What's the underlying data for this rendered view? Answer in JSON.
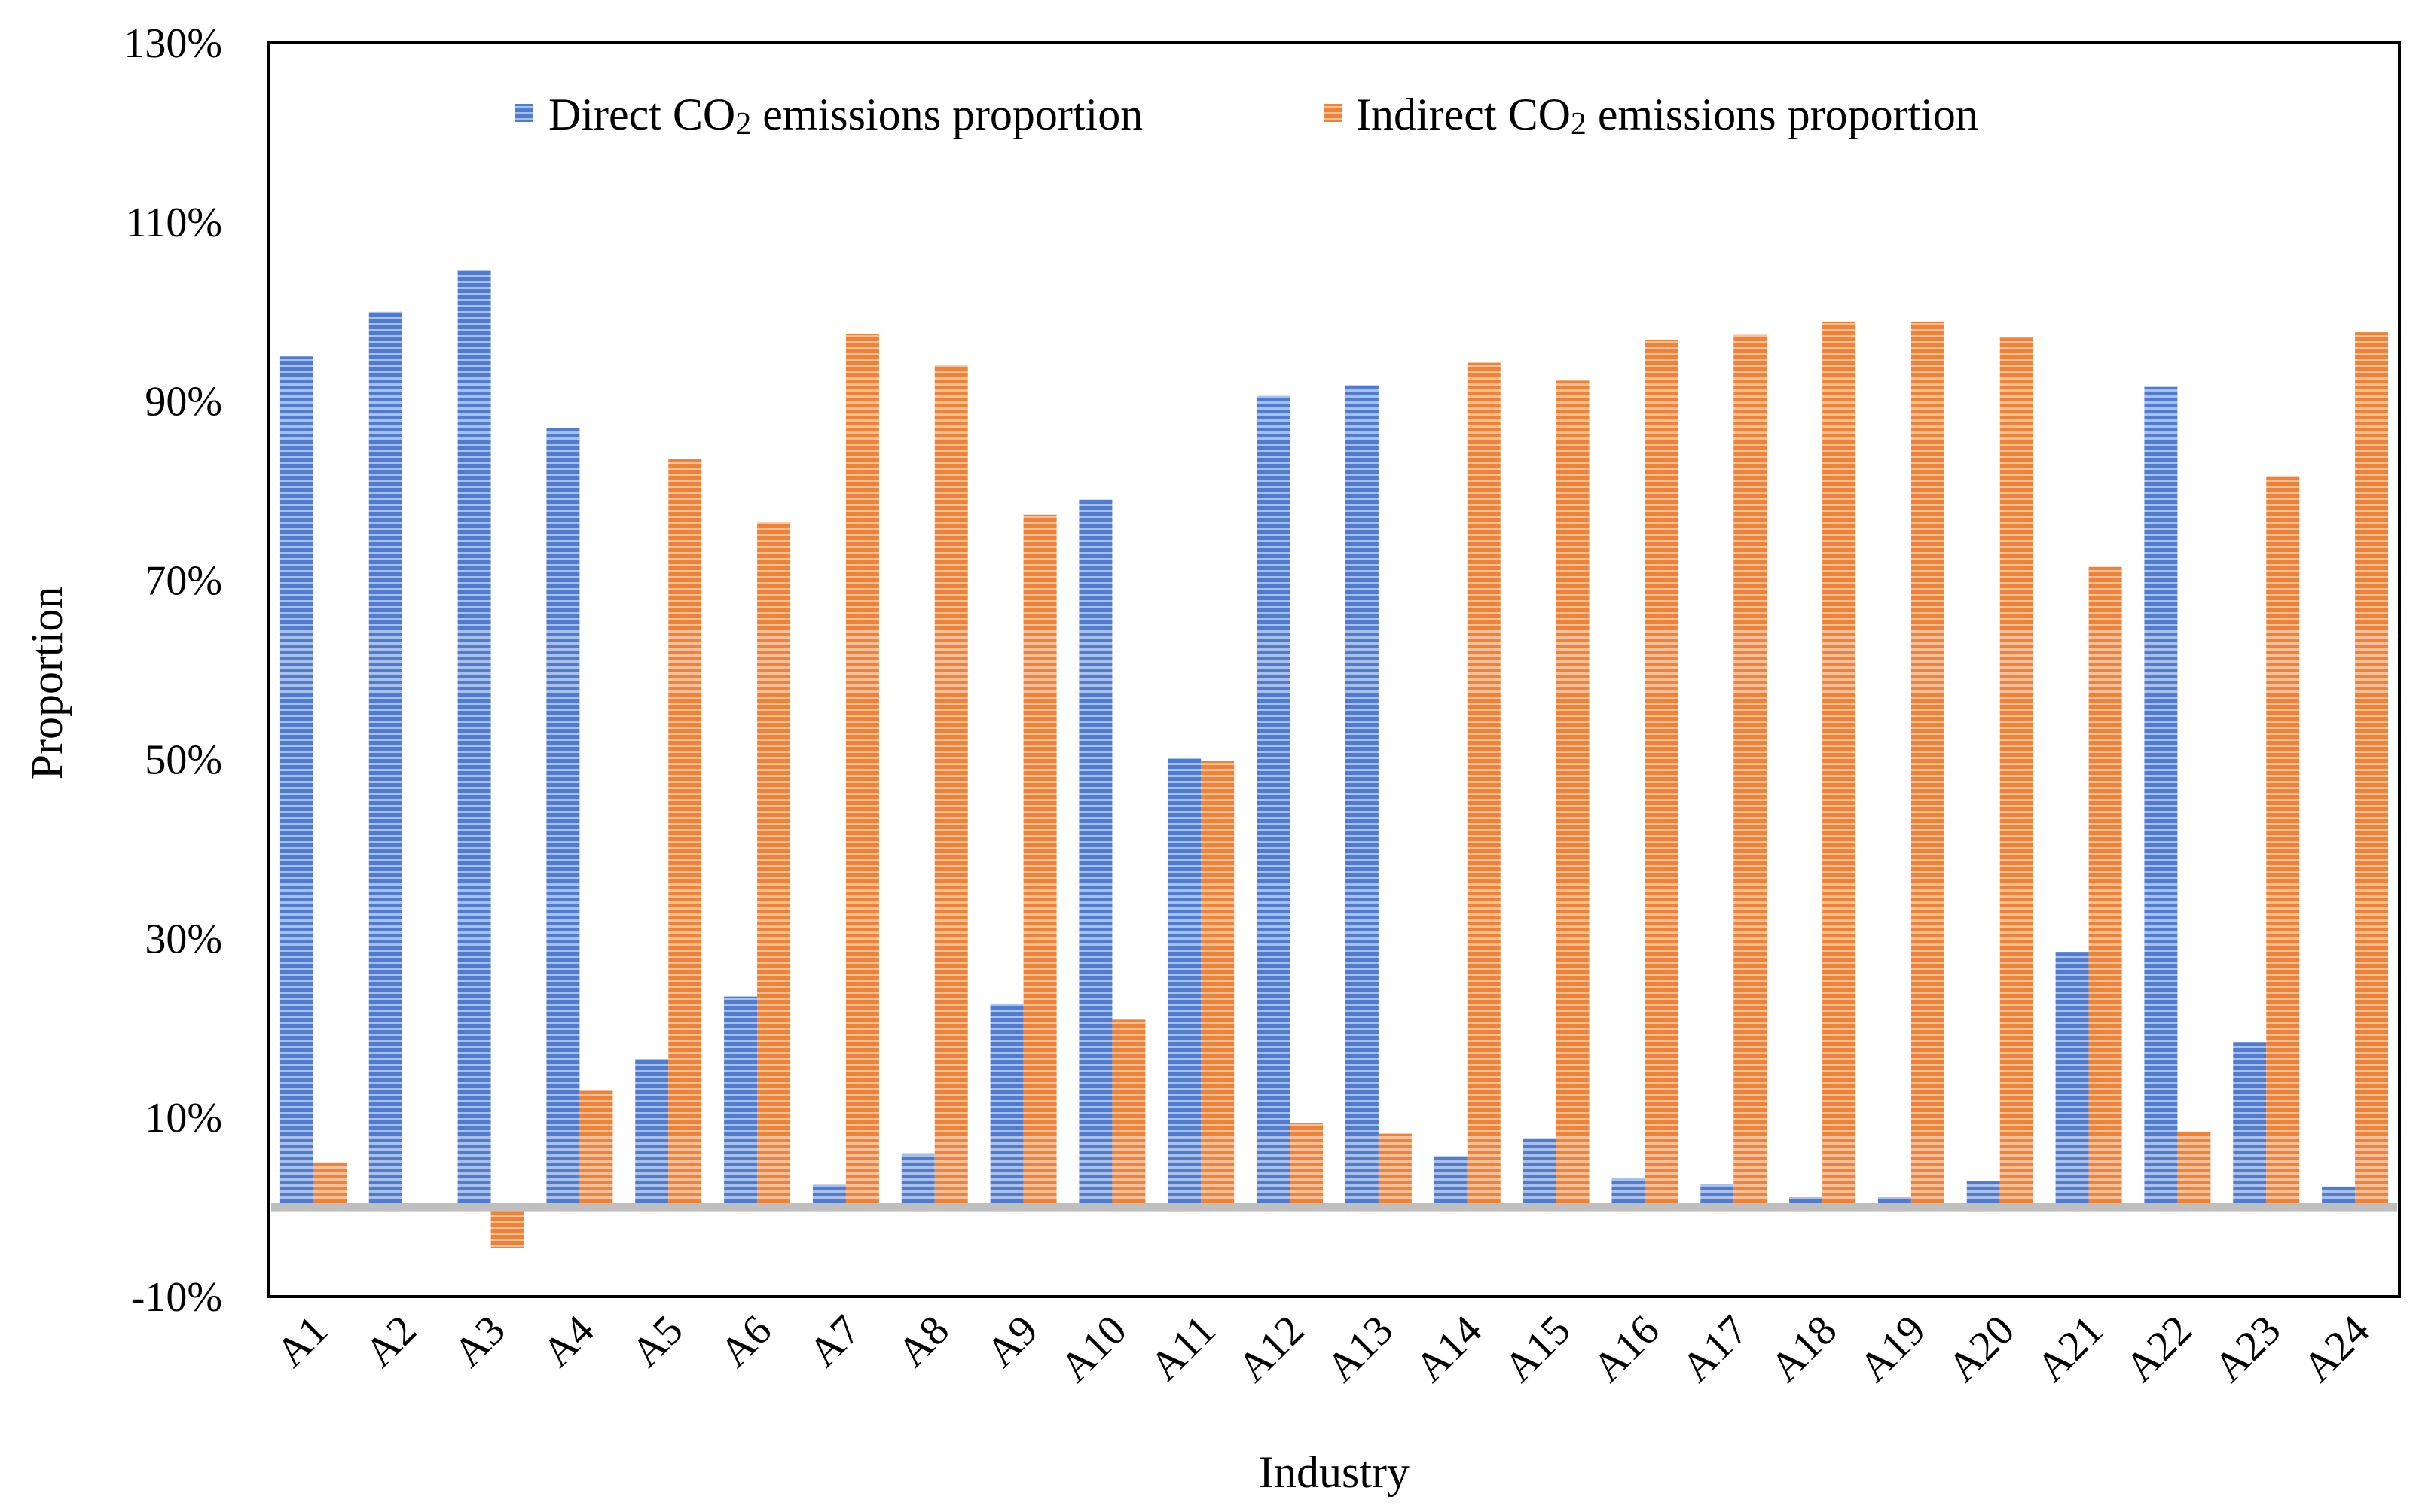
{
  "chart_data": {
    "type": "bar",
    "title": "",
    "xlabel": "Industry",
    "ylabel": "Proportion",
    "ylim": [
      -10,
      130
    ],
    "yticks": [
      130,
      110,
      90,
      70,
      50,
      30,
      10,
      -10
    ],
    "ytick_labels": [
      "130%",
      "110%",
      "90%",
      "70%",
      "50%",
      "30%",
      "10%",
      "-10%"
    ],
    "categories": [
      "A1",
      "A2",
      "A3",
      "A4",
      "A5",
      "A6",
      "A7",
      "A8",
      "A9",
      "A10",
      "A11",
      "A12",
      "A13",
      "A14",
      "A15",
      "A16",
      "A17",
      "A18",
      "A19",
      "A20",
      "A21",
      "A22",
      "A23",
      "A24"
    ],
    "legend": {
      "position": "top-center",
      "series_0": {
        "prefix": "Direct CO",
        "sub": "2",
        "suffix": " emissions proportion"
      },
      "series_1": {
        "prefix": "Indirect CO",
        "sub": "2",
        "suffix": " emissions proportion"
      }
    },
    "series": [
      {
        "name": "Direct CO2 emissions proportion",
        "color": "#4472C4",
        "values": [
          95,
          100,
          104.6,
          87,
          16.5,
          23.5,
          2.5,
          6,
          22.7,
          79,
          50.2,
          90.6,
          91.8,
          5.7,
          7.7,
          3.2,
          2.6,
          1.1,
          1.1,
          2.9,
          28.5,
          91.6,
          18.4,
          2.3
        ]
      },
      {
        "name": "Indirect CO2 emissions proportion",
        "color": "#ED7D31",
        "values": [
          5,
          0,
          -4.6,
          13,
          83.5,
          76.5,
          97.5,
          94,
          77.3,
          21,
          49.8,
          9.4,
          8.2,
          94.3,
          92.3,
          96.8,
          97.4,
          98.9,
          98.9,
          97.1,
          71.5,
          8.4,
          81.6,
          97.7
        ]
      }
    ],
    "grid": false,
    "zero_line_color": "#BFBFBF"
  }
}
